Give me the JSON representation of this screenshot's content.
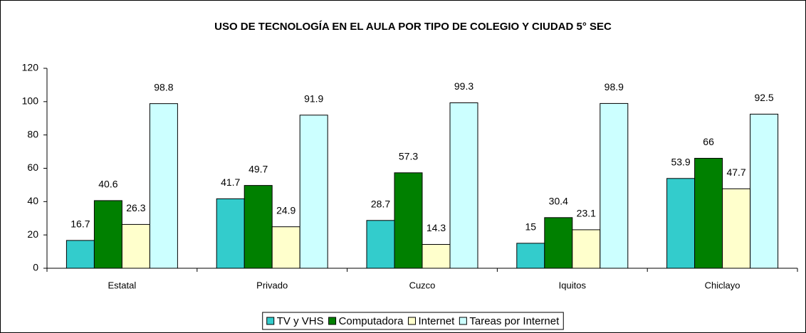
{
  "chart_data": {
    "type": "bar",
    "title": "USO DE TECNOLOGÍA EN EL AULA POR TIPO DE COLEGIO Y CIUDAD 5° SEC",
    "categories": [
      "Estatal",
      "Privado",
      "Cuzco",
      "Iquitos",
      "Chiclayo"
    ],
    "series": [
      {
        "name": "TV y VHS",
        "color": "#33CCCC",
        "values": [
          16.7,
          41.7,
          28.7,
          15,
          53.9
        ]
      },
      {
        "name": "Computadora",
        "color": "#008000",
        "values": [
          40.6,
          49.7,
          57.3,
          30.4,
          66
        ]
      },
      {
        "name": "Internet",
        "color": "#FFFFCC",
        "values": [
          26.3,
          24.9,
          14.3,
          23.1,
          47.7
        ]
      },
      {
        "name": "Tareas por Internet",
        "color": "#CCFFFF",
        "values": [
          98.8,
          91.9,
          99.3,
          98.9,
          92.5
        ]
      }
    ],
    "ylim": [
      0,
      120
    ],
    "yticks": [
      0,
      20,
      40,
      60,
      80,
      100,
      120
    ],
    "legend": "bottom",
    "grid": false
  }
}
